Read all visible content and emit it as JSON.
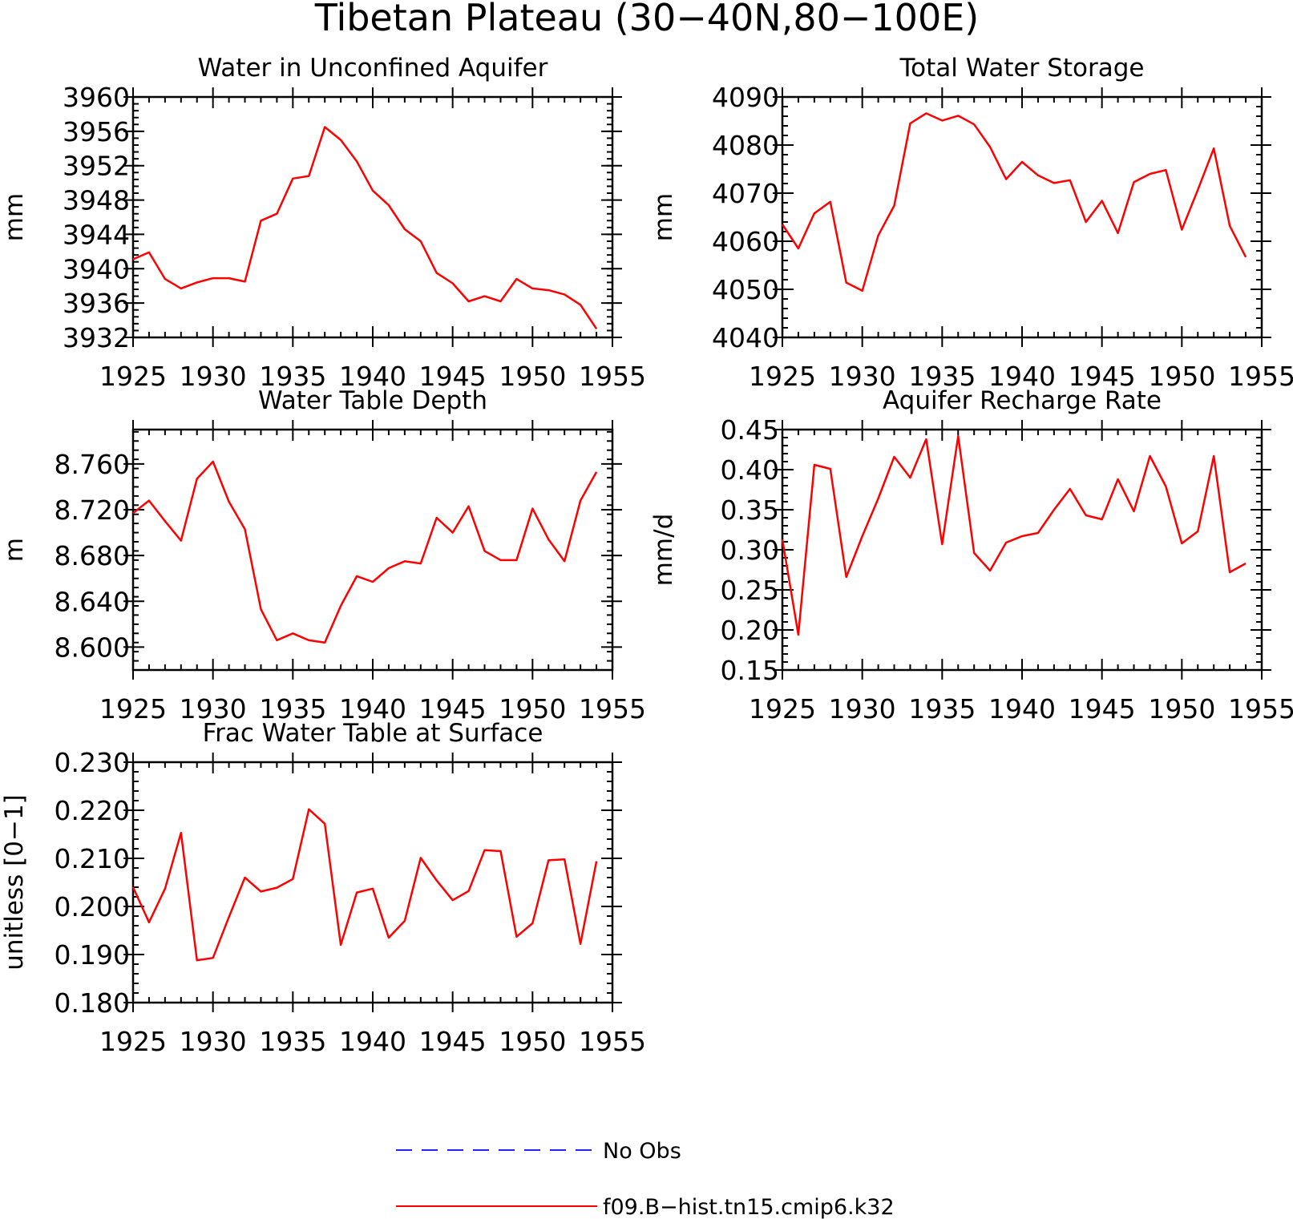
{
  "title": "Tibetan Plateau (30−40N,80−100E)",
  "legend": [
    {
      "label": "No Obs",
      "color": "#2222ff",
      "style": "dashed"
    },
    {
      "label": "f09.B−hist.tn15.cmip6.k32",
      "color": "#ff0000",
      "style": "solid"
    }
  ],
  "chart_data": [
    {
      "type": "line",
      "title": "Water in Unconfined Aquifer",
      "ylabel": "mm",
      "xlim": [
        1925,
        1955
      ],
      "ylim": [
        3932,
        3960
      ],
      "xticks": [
        1925,
        1930,
        1935,
        1940,
        1945,
        1950,
        1955
      ],
      "yticks": [
        3932,
        3936,
        3940,
        3944,
        3948,
        3952,
        3956,
        3960
      ],
      "ytick_labels": [
        "3932",
        "3936",
        "3940",
        "3944",
        "3948",
        "3952",
        "3956",
        "3960"
      ],
      "series": [
        {
          "color": "#ff0000",
          "x": [
            1925,
            1926,
            1927,
            1928,
            1929,
            1930,
            1931,
            1932,
            1933,
            1934,
            1935,
            1936,
            1937,
            1938,
            1939,
            1940,
            1941,
            1942,
            1943,
            1944,
            1945,
            1946,
            1947,
            1948,
            1949,
            1950,
            1951,
            1952,
            1953,
            1954
          ],
          "y": [
            3941.1,
            3941.9,
            3938.8,
            3937.7,
            3938.4,
            3938.9,
            3938.9,
            3938.5,
            3945.6,
            3946.4,
            3950.5,
            3950.8,
            3956.5,
            3955.0,
            3952.5,
            3949.1,
            3947.4,
            3944.6,
            3943.2,
            3939.5,
            3938.3,
            3936.2,
            3936.8,
            3936.2,
            3938.8,
            3937.7,
            3937.5,
            3937.0,
            3935.8,
            3933.0
          ]
        }
      ]
    },
    {
      "type": "line",
      "title": "Total Water Storage",
      "ylabel": "mm",
      "xlim": [
        1925,
        1955
      ],
      "ylim": [
        4040,
        4090
      ],
      "xticks": [
        1925,
        1930,
        1935,
        1940,
        1945,
        1950,
        1955
      ],
      "yticks": [
        4040,
        4050,
        4060,
        4070,
        4080,
        4090
      ],
      "ytick_labels": [
        "4040",
        "4050",
        "4060",
        "4070",
        "4080",
        "4090"
      ],
      "series": [
        {
          "color": "#ff0000",
          "x": [
            1925,
            1926,
            1927,
            1928,
            1929,
            1930,
            1931,
            1932,
            1933,
            1934,
            1935,
            1936,
            1937,
            1938,
            1939,
            1940,
            1941,
            1942,
            1943,
            1944,
            1945,
            1946,
            1947,
            1948,
            1949,
            1950,
            1951,
            1952,
            1953,
            1954
          ],
          "y": [
            4063.5,
            4058.5,
            4065.8,
            4068.2,
            4051.4,
            4049.7,
            4061.2,
            4067.4,
            4084.5,
            4086.6,
            4085.1,
            4086.1,
            4084.3,
            4079.6,
            4072.9,
            4076.5,
            4073.7,
            4072.1,
            4072.7,
            4064.0,
            4068.4,
            4061.7,
            4072.3,
            4074.0,
            4074.8,
            4062.4,
            4070.7,
            4079.3,
            4063.2,
            4056.7
          ]
        }
      ]
    },
    {
      "type": "line",
      "title": "Water Table Depth",
      "ylabel": "m",
      "xlim": [
        1925,
        1955
      ],
      "ylim": [
        8.58,
        8.79
      ],
      "xticks": [
        1925,
        1930,
        1935,
        1940,
        1945,
        1950,
        1955
      ],
      "yticks": [
        8.6,
        8.64,
        8.68,
        8.72,
        8.76
      ],
      "ytick_labels": [
        "8.600",
        "8.640",
        "8.680",
        "8.720",
        "8.760"
      ],
      "series": [
        {
          "color": "#ff0000",
          "x": [
            1925,
            1926,
            1927,
            1928,
            1929,
            1930,
            1931,
            1932,
            1933,
            1934,
            1935,
            1936,
            1937,
            1938,
            1939,
            1940,
            1941,
            1942,
            1943,
            1944,
            1945,
            1946,
            1947,
            1948,
            1949,
            1950,
            1951,
            1952,
            1953,
            1954
          ],
          "y": [
            8.717,
            8.728,
            8.71,
            8.693,
            8.747,
            8.762,
            8.727,
            8.703,
            8.633,
            8.606,
            8.612,
            8.606,
            8.604,
            8.636,
            8.662,
            8.657,
            8.669,
            8.675,
            8.673,
            8.713,
            8.7,
            8.723,
            8.684,
            8.676,
            8.676,
            8.721,
            8.694,
            8.675,
            8.728,
            8.753
          ]
        }
      ]
    },
    {
      "type": "line",
      "title": "Aquifer Recharge Rate",
      "ylabel": "mm/d",
      "xlim": [
        1925,
        1955
      ],
      "ylim": [
        0.15,
        0.45
      ],
      "xticks": [
        1925,
        1930,
        1935,
        1940,
        1945,
        1950,
        1955
      ],
      "yticks": [
        0.15,
        0.2,
        0.25,
        0.3,
        0.35,
        0.4,
        0.45
      ],
      "ytick_labels": [
        "0.15",
        "0.20",
        "0.25",
        "0.30",
        "0.35",
        "0.40",
        "0.45"
      ],
      "series": [
        {
          "color": "#ff0000",
          "x": [
            1925,
            1926,
            1927,
            1928,
            1929,
            1930,
            1931,
            1932,
            1933,
            1934,
            1935,
            1936,
            1937,
            1938,
            1939,
            1940,
            1941,
            1942,
            1943,
            1944,
            1945,
            1946,
            1947,
            1948,
            1949,
            1950,
            1951,
            1952,
            1953,
            1954
          ],
          "y": [
            0.313,
            0.194,
            0.406,
            0.401,
            0.266,
            0.317,
            0.364,
            0.416,
            0.39,
            0.438,
            0.307,
            0.442,
            0.296,
            0.274,
            0.309,
            0.317,
            0.321,
            0.35,
            0.376,
            0.343,
            0.338,
            0.388,
            0.348,
            0.417,
            0.379,
            0.308,
            0.323,
            0.417,
            0.272,
            0.283
          ]
        }
      ]
    },
    {
      "type": "line",
      "title": "Frac Water Table at Surface",
      "ylabel": "unitless [0−1]",
      "xlim": [
        1925,
        1955
      ],
      "ylim": [
        0.18,
        0.23
      ],
      "xticks": [
        1925,
        1930,
        1935,
        1940,
        1945,
        1950,
        1955
      ],
      "yticks": [
        0.18,
        0.19,
        0.2,
        0.21,
        0.22,
        0.23
      ],
      "ytick_labels": [
        "0.180",
        "0.190",
        "0.200",
        "0.210",
        "0.220",
        "0.230"
      ],
      "series": [
        {
          "color": "#ff0000",
          "x": [
            1925,
            1926,
            1927,
            1928,
            1929,
            1930,
            1931,
            1932,
            1933,
            1934,
            1935,
            1936,
            1937,
            1938,
            1939,
            1940,
            1941,
            1942,
            1943,
            1944,
            1945,
            1946,
            1947,
            1948,
            1949,
            1950,
            1951,
            1952,
            1953,
            1954
          ],
          "y": [
            0.204,
            0.1967,
            0.2037,
            0.2153,
            0.1888,
            0.1893,
            0.1978,
            0.206,
            0.2031,
            0.2039,
            0.2057,
            0.2202,
            0.2172,
            0.192,
            0.2029,
            0.2037,
            0.1935,
            0.197,
            0.2101,
            0.2054,
            0.2013,
            0.2032,
            0.2117,
            0.2115,
            0.1937,
            0.1965,
            0.2096,
            0.2098,
            0.1922,
            0.2094
          ]
        }
      ]
    }
  ]
}
